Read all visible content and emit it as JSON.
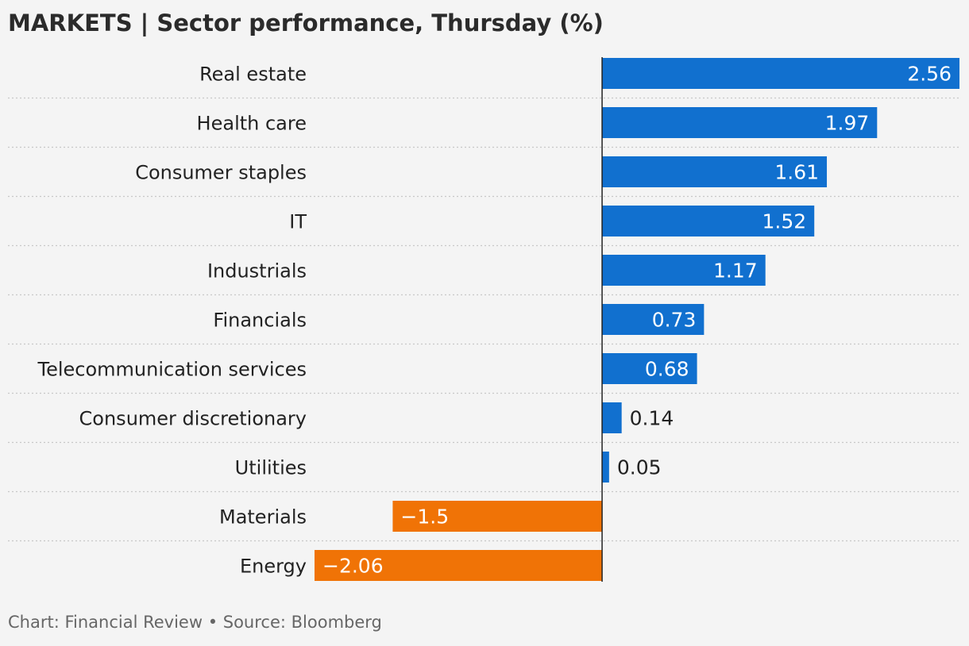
{
  "header": {
    "title": "MARKETS | Sector performance, Thursday (%)"
  },
  "footer": {
    "source": "Chart: Financial Review • Source: Bloomberg"
  },
  "colors": {
    "positive": "#1170cf",
    "negative": "#f07306",
    "background": "#f4f4f4",
    "label_text": "#222222",
    "gridline": "#c8c8c8",
    "axis": "#222222"
  },
  "chart_data": {
    "type": "bar",
    "orientation": "horizontal",
    "title": "MARKETS | Sector performance, Thursday (%)",
    "categories": [
      "Real estate",
      "Health care",
      "Consumer staples",
      "IT",
      "Industrials",
      "Financials",
      "Telecommunication services",
      "Consumer discretionary",
      "Utilities",
      "Materials",
      "Energy"
    ],
    "values": [
      2.56,
      1.97,
      1.61,
      1.52,
      1.17,
      0.73,
      0.68,
      0.14,
      0.05,
      -1.5,
      -2.06
    ],
    "value_labels": [
      "2.56",
      "1.97",
      "1.61",
      "1.52",
      "1.17",
      "0.73",
      "0.68",
      "0.14",
      "0.05",
      "−1.5",
      "−2.06"
    ],
    "xlim": [
      -2.06,
      2.56
    ],
    "grid": "dotted separators between rows",
    "legend": "none"
  }
}
